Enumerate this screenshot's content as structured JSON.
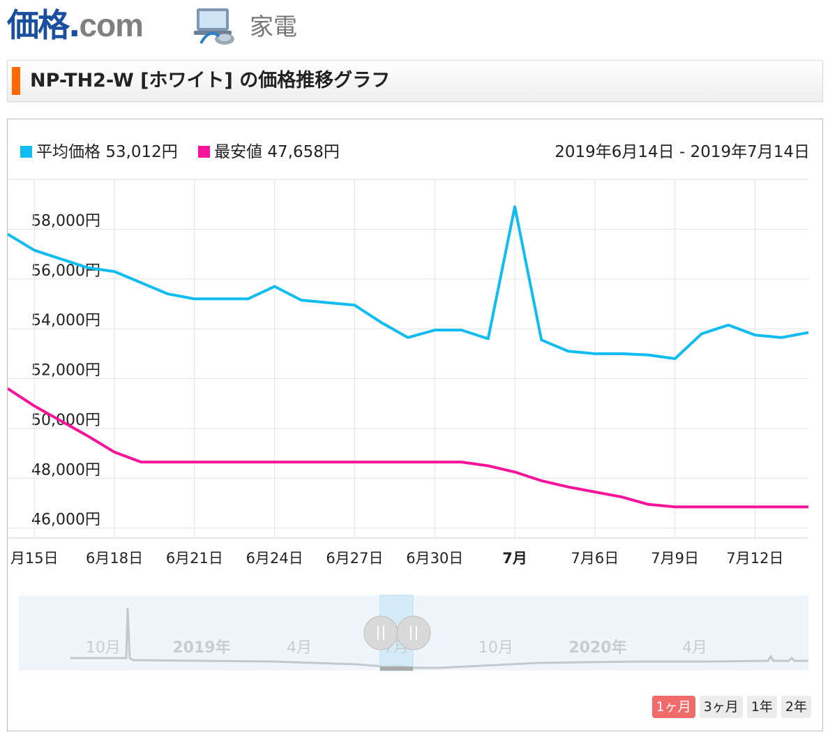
{
  "header": {
    "logo_main": "価格",
    "logo_dot": ".",
    "logo_com": "com",
    "category_icon": "laptop-vacuum-icon",
    "category": "家電"
  },
  "page_title": "NP-TH2-W [ホワイト] の価格推移グラフ",
  "colors": {
    "accent": "#ff6a00",
    "avg": "#11bdf0",
    "min": "#f7149a",
    "active_period": "#f26b6b"
  },
  "legend": {
    "avg_label": "平均価格",
    "avg_value": "53,012円",
    "min_label": "最安値",
    "min_value": "47,658円"
  },
  "date_range": "2019年6月14日 - 2019年7月14日",
  "chart_data": {
    "type": "line",
    "title": "",
    "x": [
      "2019-06-14",
      "2019-06-15",
      "2019-06-16",
      "2019-06-17",
      "2019-06-18",
      "2019-06-19",
      "2019-06-20",
      "2019-06-21",
      "2019-06-22",
      "2019-06-23",
      "2019-06-24",
      "2019-06-25",
      "2019-06-26",
      "2019-06-27",
      "2019-06-28",
      "2019-06-29",
      "2019-06-30",
      "2019-07-01",
      "2019-07-02",
      "2019-07-03",
      "2019-07-04",
      "2019-07-05",
      "2019-07-06",
      "2019-07-07",
      "2019-07-08",
      "2019-07-09",
      "2019-07-10",
      "2019-07-11",
      "2019-07-12",
      "2019-07-13",
      "2019-07-14"
    ],
    "series": [
      {
        "name": "平均価格",
        "color": "#11bdf0",
        "values": [
          57800,
          57150,
          56800,
          56450,
          56300,
          55850,
          55400,
          55200,
          55200,
          55200,
          55700,
          55150,
          55050,
          54950,
          54250,
          53650,
          53950,
          53950,
          53600,
          58900,
          53550,
          53100,
          53000,
          53000,
          52950,
          52800,
          53800,
          54150,
          53750,
          53650,
          53850
        ]
      },
      {
        "name": "最安値",
        "color": "#f7149a",
        "values": [
          51600,
          50900,
          50300,
          49700,
          49050,
          48650,
          48650,
          48650,
          48650,
          48650,
          48650,
          48650,
          48650,
          48650,
          48650,
          48650,
          48650,
          48650,
          48500,
          48250,
          47900,
          47650,
          47450,
          47250,
          46950,
          46850,
          46850,
          46850,
          46850,
          46850,
          46850
        ]
      }
    ],
    "ylim": [
      45600,
      60000
    ],
    "y_ticks": [
      46000,
      48000,
      50000,
      52000,
      54000,
      56000,
      58000
    ],
    "y_tick_labels": [
      "46,000円",
      "48,000円",
      "50,000円",
      "52,000円",
      "54,000円",
      "56,000円",
      "58,000円"
    ],
    "x_ticks": [
      {
        "date": "2019-06-15",
        "label": "月15日",
        "bold": false
      },
      {
        "date": "2019-06-18",
        "label": "6月18日",
        "bold": false
      },
      {
        "date": "2019-06-21",
        "label": "6月21日",
        "bold": false
      },
      {
        "date": "2019-06-24",
        "label": "6月24日",
        "bold": false
      },
      {
        "date": "2019-06-27",
        "label": "6月27日",
        "bold": false
      },
      {
        "date": "2019-06-30",
        "label": "6月30日",
        "bold": false
      },
      {
        "date": "2019-07-03",
        "label": "7月",
        "bold": true
      },
      {
        "date": "2019-07-06",
        "label": "7月6日",
        "bold": false
      },
      {
        "date": "2019-07-09",
        "label": "7月9日",
        "bold": false
      },
      {
        "date": "2019-07-12",
        "label": "7月12日",
        "bold": false
      }
    ],
    "grid": true,
    "legend_position": "top-left"
  },
  "navigator": {
    "labels": [
      "10月",
      "2019年",
      "4月",
      "7月",
      "10月",
      "2020年",
      "4月"
    ],
    "bold": [
      false,
      true,
      false,
      false,
      false,
      true,
      false
    ],
    "handle_icon": "drag-handle-icon"
  },
  "periods": [
    {
      "label": "1ヶ月",
      "active": true
    },
    {
      "label": "3ヶ月",
      "active": false
    },
    {
      "label": "1年",
      "active": false
    },
    {
      "label": "2年",
      "active": false
    }
  ]
}
